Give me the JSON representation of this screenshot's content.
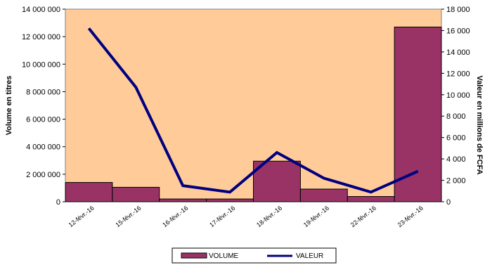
{
  "colors": {
    "plot_background": "#FFCC99",
    "bar_fill": "#993366",
    "bar_stroke": "#000000",
    "line": "#000080"
  },
  "chart_data": {
    "type": "bar",
    "title": "",
    "categories": [
      "12-févr.-16",
      "15-févr.-16",
      "16-févr.-16",
      "17-févr.-16",
      "18-févr.-16",
      "19-févr.-16",
      "22-févr.-16",
      "23-févr.-16"
    ],
    "ylabel": "Volume  en titres",
    "y2label": "Valeur en millions de FCFA",
    "ylim": [
      0,
      14000000
    ],
    "y2lim": [
      0,
      18000
    ],
    "yticks": [
      0,
      2000000,
      4000000,
      6000000,
      8000000,
      10000000,
      12000000,
      14000000
    ],
    "ytick_labels": [
      "0",
      "2 000 000",
      "4 000 000",
      "6 000 000",
      "8 000 000",
      "10 000 000",
      "12 000 000",
      "14 000 000"
    ],
    "y2ticks": [
      0,
      2000,
      4000,
      6000,
      8000,
      10000,
      12000,
      14000,
      16000,
      18000
    ],
    "y2tick_labels": [
      "0",
      "2 000",
      "4 000",
      "6 000",
      "8 000",
      "10 000",
      "12 000",
      "14 000",
      "16 000",
      "18 000"
    ],
    "series": [
      {
        "name": "VOLUME",
        "type": "bar",
        "axis": "left",
        "values": [
          1400000,
          1050000,
          200000,
          200000,
          2950000,
          920000,
          380000,
          12700000
        ]
      },
      {
        "name": "VALEUR",
        "type": "line",
        "axis": "right",
        "values": [
          16200,
          10700,
          1500,
          900,
          4600,
          2200,
          900,
          2850
        ]
      }
    ],
    "legend_position": "bottom",
    "grid": false
  }
}
